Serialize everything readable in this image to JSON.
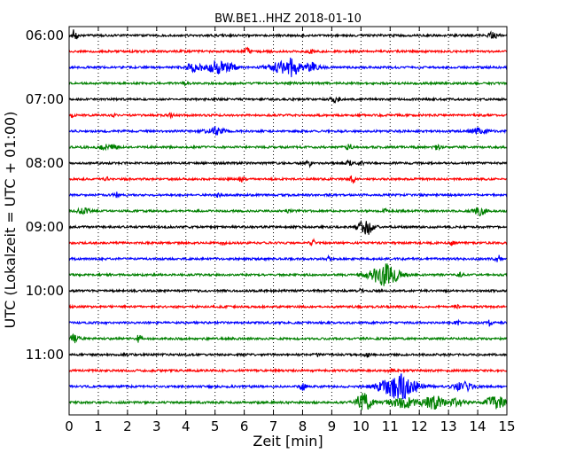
{
  "chart_data": {
    "type": "line",
    "title": "BW.BE1..HHZ 2018-01-10",
    "xlabel": "Zeit  [min]",
    "ylabel": "UTC (Lokalzeit = UTC + 01:00)",
    "xlim": [
      0,
      15
    ],
    "x_ticks": [
      "0",
      "1",
      "2",
      "3",
      "4",
      "5",
      "6",
      "7",
      "8",
      "9",
      "10",
      "11",
      "12",
      "13",
      "14",
      "15"
    ],
    "y_ticks": [
      "06:00",
      "07:00",
      "08:00",
      "09:00",
      "10:00",
      "11:00"
    ],
    "grid": "vertical dotted",
    "trace_colors": [
      "#000000",
      "#ff0000",
      "#0000ff",
      "#008000"
    ],
    "traces": [
      {
        "start": "06:00",
        "events": [
          {
            "t": 0.2,
            "amp": 9,
            "w": 0.08
          },
          {
            "t": 14.5,
            "amp": 3,
            "w": 0.2
          }
        ]
      },
      {
        "start": "06:15",
        "events": [
          {
            "t": 6.1,
            "amp": 4,
            "w": 0.08
          },
          {
            "t": 8.3,
            "amp": 2,
            "w": 0.1
          }
        ]
      },
      {
        "start": "06:30",
        "events": [
          {
            "t": 4.3,
            "amp": 5,
            "w": 0.3
          },
          {
            "t": 5.05,
            "amp": 7,
            "w": 0.25
          },
          {
            "t": 5.5,
            "amp": 4,
            "w": 0.25
          },
          {
            "t": 7.2,
            "amp": 6,
            "w": 0.4
          },
          {
            "t": 7.65,
            "amp": 9,
            "w": 0.2
          },
          {
            "t": 8.3,
            "amp": 5,
            "w": 0.3
          }
        ]
      },
      {
        "start": "06:45",
        "events": [
          {
            "t": 4.0,
            "amp": 2,
            "w": 0.1
          },
          {
            "t": 7.6,
            "amp": 2,
            "w": 0.1
          }
        ]
      },
      {
        "start": "07:00",
        "events": [
          {
            "t": 9.1,
            "amp": 4,
            "w": 0.15
          }
        ]
      },
      {
        "start": "07:15",
        "events": [
          {
            "t": 0.1,
            "amp": 2,
            "w": 0.08
          },
          {
            "t": 1.6,
            "amp": 2,
            "w": 0.08
          },
          {
            "t": 3.5,
            "amp": 2,
            "w": 0.08
          }
        ]
      },
      {
        "start": "07:30",
        "events": [
          {
            "t": 5.0,
            "amp": 4,
            "w": 0.3
          },
          {
            "t": 14.0,
            "amp": 3,
            "w": 0.3
          }
        ]
      },
      {
        "start": "07:45",
        "events": [
          {
            "t": 1.3,
            "amp": 3,
            "w": 0.3
          },
          {
            "t": 9.6,
            "amp": 3,
            "w": 0.1
          },
          {
            "t": 12.6,
            "amp": 3,
            "w": 0.1
          }
        ]
      },
      {
        "start": "08:00",
        "events": [
          {
            "t": 8.2,
            "amp": 4,
            "w": 0.08
          },
          {
            "t": 9.6,
            "amp": 4,
            "w": 0.08
          },
          {
            "t": 10.0,
            "amp": 2,
            "w": 0.1
          }
        ]
      },
      {
        "start": "08:15",
        "events": [
          {
            "t": 1.3,
            "amp": 2,
            "w": 0.08
          },
          {
            "t": 5.9,
            "amp": 3,
            "w": 0.08
          },
          {
            "t": 9.7,
            "amp": 4,
            "w": 0.08
          }
        ]
      },
      {
        "start": "08:30",
        "events": [
          {
            "t": 1.6,
            "amp": 3,
            "w": 0.08
          },
          {
            "t": 5.1,
            "amp": 2,
            "w": 0.08
          }
        ]
      },
      {
        "start": "08:45",
        "events": [
          {
            "t": 0.5,
            "amp": 3,
            "w": 0.2
          },
          {
            "t": 7.5,
            "amp": 3,
            "w": 0.08
          },
          {
            "t": 10.8,
            "amp": 2,
            "w": 0.08
          },
          {
            "t": 14.1,
            "amp": 5,
            "w": 0.2
          }
        ]
      },
      {
        "start": "09:00",
        "events": [
          {
            "t": 10.15,
            "amp": 10,
            "w": 0.25
          }
        ]
      },
      {
        "start": "09:15",
        "events": [
          {
            "t": 5.3,
            "amp": 3,
            "w": 0.08
          },
          {
            "t": 8.35,
            "amp": 4,
            "w": 0.08
          },
          {
            "t": 13.1,
            "amp": 2,
            "w": 0.1
          }
        ]
      },
      {
        "start": "09:30",
        "events": [
          {
            "t": 8.9,
            "amp": 2,
            "w": 0.08
          },
          {
            "t": 14.7,
            "amp": 4,
            "w": 0.1
          }
        ]
      },
      {
        "start": "09:45",
        "events": [
          {
            "t": 10.8,
            "amp": 12,
            "w": 0.5
          },
          {
            "t": 13.4,
            "amp": 2,
            "w": 0.1
          }
        ]
      },
      {
        "start": "10:00",
        "events": [
          {
            "t": 10.0,
            "amp": 2,
            "w": 0.08
          }
        ]
      },
      {
        "start": "10:15",
        "events": [
          {
            "t": 13.3,
            "amp": 2,
            "w": 0.08
          }
        ]
      },
      {
        "start": "10:30",
        "events": [
          {
            "t": 13.3,
            "amp": 3,
            "w": 0.08
          },
          {
            "t": 14.4,
            "amp": 4,
            "w": 0.08
          }
        ]
      },
      {
        "start": "10:45",
        "events": [
          {
            "t": 0.2,
            "amp": 4,
            "w": 0.2
          },
          {
            "t": 2.4,
            "amp": 5,
            "w": 0.08
          }
        ]
      },
      {
        "start": "11:00",
        "events": [
          {
            "t": 8.5,
            "amp": 2,
            "w": 0.08
          },
          {
            "t": 10.2,
            "amp": 3,
            "w": 0.08
          }
        ]
      },
      {
        "start": "11:15",
        "events": [
          {
            "t": 11.0,
            "amp": 2,
            "w": 0.1
          }
        ]
      },
      {
        "start": "11:30",
        "events": [
          {
            "t": 8.0,
            "amp": 4,
            "w": 0.1
          },
          {
            "t": 11.3,
            "amp": 14,
            "w": 0.6
          },
          {
            "t": 13.5,
            "amp": 5,
            "w": 0.3
          }
        ]
      },
      {
        "start": "11:45",
        "events": [
          {
            "t": 10.1,
            "amp": 10,
            "w": 0.3
          },
          {
            "t": 11.5,
            "amp": 6,
            "w": 0.5
          },
          {
            "t": 12.5,
            "amp": 8,
            "w": 0.3
          },
          {
            "t": 13.3,
            "amp": 4,
            "w": 0.3
          },
          {
            "t": 14.6,
            "amp": 8,
            "w": 0.3
          }
        ]
      }
    ]
  }
}
